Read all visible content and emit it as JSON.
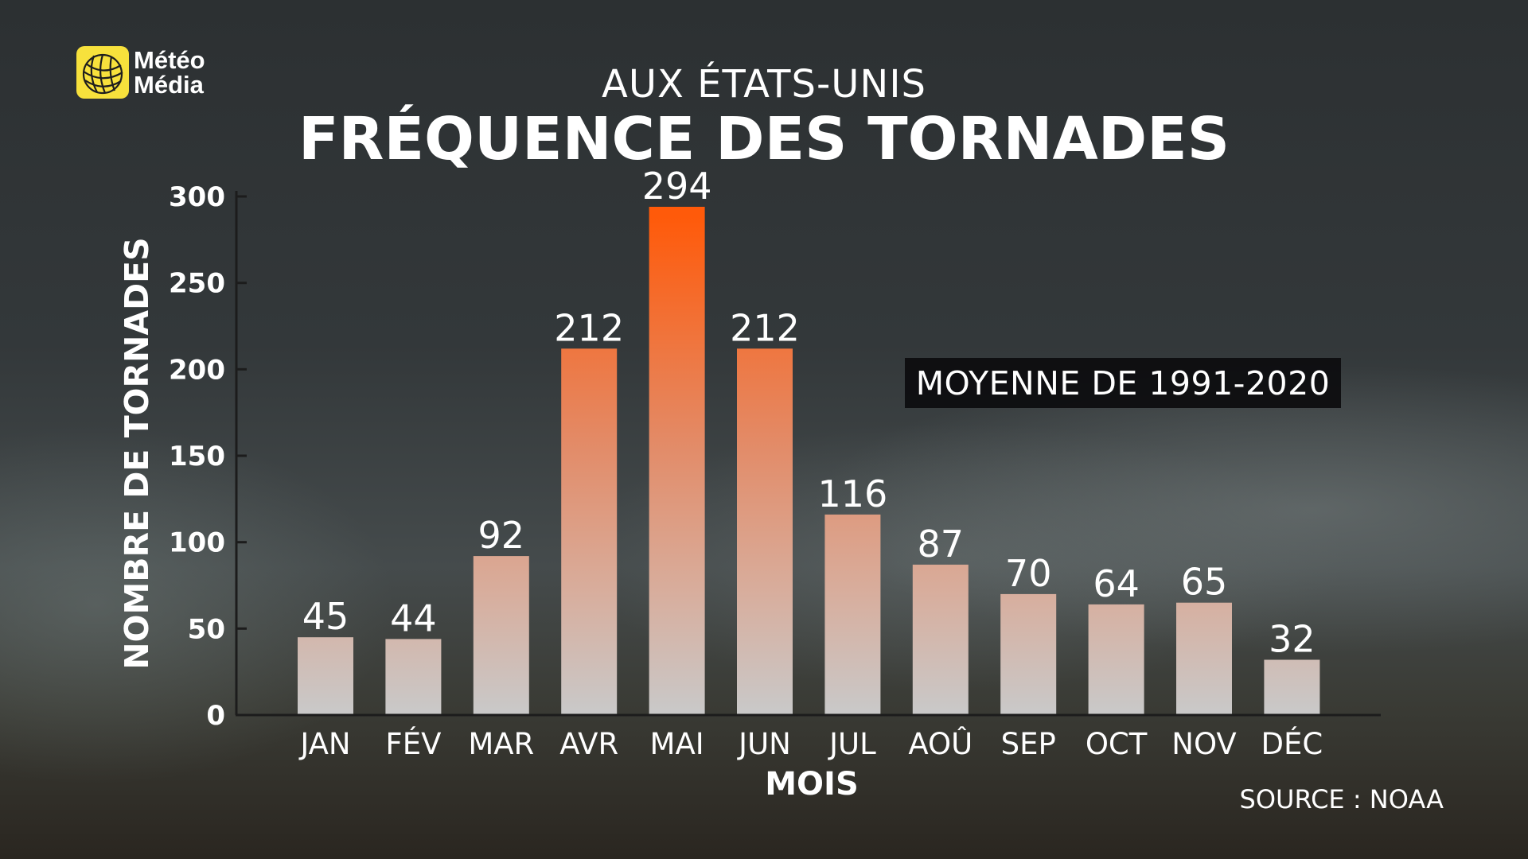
{
  "logo": {
    "line1": "Météo",
    "line2": "Média",
    "color": "#f7e13c"
  },
  "header": {
    "subtitle": "AUX ÉTATS-UNIS",
    "title": "FRÉQUENCE DES TORNADES"
  },
  "note": "MOYENNE DE 1991-2020",
  "source": "SOURCE : NOAA",
  "chart_data": {
    "type": "bar",
    "title": "FRÉQUENCE DES TORNADES",
    "subtitle": "AUX ÉTATS-UNIS",
    "xlabel": "MOIS",
    "ylabel": "NOMBRE DE TORNADES",
    "categories": [
      "JAN",
      "FÉV",
      "MAR",
      "AVR",
      "MAI",
      "JUN",
      "JUL",
      "AOÛ",
      "SEP",
      "OCT",
      "NOV",
      "DÉC"
    ],
    "values": [
      45,
      44,
      92,
      212,
      294,
      212,
      116,
      87,
      70,
      64,
      65,
      32
    ],
    "data_labels": [
      "45",
      "44",
      "92",
      "212",
      "294",
      "212",
      "116",
      "87",
      "70",
      "64",
      "65",
      "32"
    ],
    "ylim": [
      0,
      300
    ],
    "yticks": [
      0,
      50,
      100,
      150,
      200,
      250,
      300
    ],
    "grid": false,
    "annotation": "MOYENNE DE 1991-2020",
    "colors": {
      "bar_high": "#ff5a0a",
      "bar_low": "#c9c9c9",
      "axis": "#1c1c1c"
    }
  }
}
